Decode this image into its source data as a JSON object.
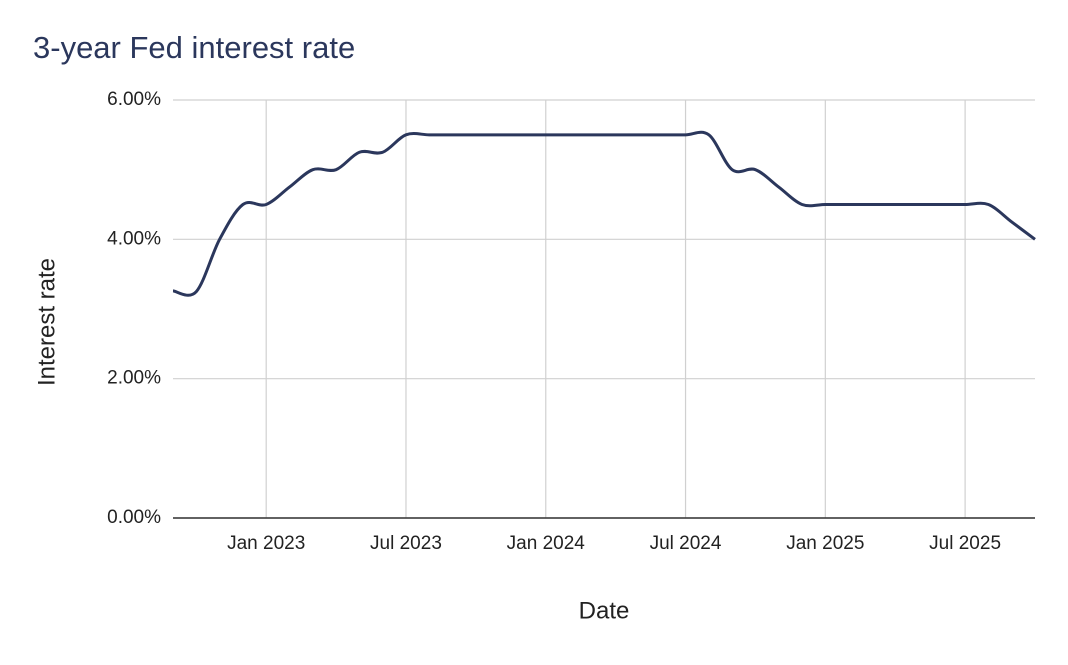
{
  "chart_data": {
    "type": "line",
    "title": "3-year Fed interest rate",
    "x_label": "Date",
    "y_label": "Interest rate",
    "x": [
      "2022-09",
      "2022-10",
      "2022-11",
      "2022-12",
      "2023-01",
      "2023-02",
      "2023-03",
      "2023-04",
      "2023-05",
      "2023-06",
      "2023-07",
      "2023-08",
      "2023-09",
      "2023-10",
      "2023-11",
      "2023-12",
      "2024-01",
      "2024-02",
      "2024-03",
      "2024-04",
      "2024-05",
      "2024-06",
      "2024-07",
      "2024-08",
      "2024-09",
      "2024-10",
      "2024-11",
      "2024-12",
      "2025-01",
      "2025-02",
      "2025-03",
      "2025-04",
      "2025-05",
      "2025-06",
      "2025-07",
      "2025-08",
      "2025-09",
      "2025-10"
    ],
    "series": [
      {
        "name": "Interest rate",
        "color": "#2b375c",
        "values": [
          3.26,
          3.25,
          4.0,
          4.5,
          4.5,
          4.75,
          5.0,
          5.0,
          5.25,
          5.25,
          5.5,
          5.5,
          5.5,
          5.5,
          5.5,
          5.5,
          5.5,
          5.5,
          5.5,
          5.5,
          5.5,
          5.5,
          5.5,
          5.5,
          5.0,
          5.0,
          4.75,
          4.5,
          4.5,
          4.5,
          4.5,
          4.5,
          4.5,
          4.5,
          4.5,
          4.5,
          4.25,
          4.0
        ]
      }
    ],
    "xlim": [
      "2022-09",
      "2025-10"
    ],
    "xticks": [
      {
        "value": "2023-01",
        "label": "Jan 2023"
      },
      {
        "value": "2023-07",
        "label": "Jul 2023"
      },
      {
        "value": "2024-01",
        "label": "Jan 2024"
      },
      {
        "value": "2024-07",
        "label": "Jul 2024"
      },
      {
        "value": "2025-01",
        "label": "Jan 2025"
      },
      {
        "value": "2025-07",
        "label": "Jul 2025"
      }
    ],
    "ylim": [
      0,
      6
    ],
    "yticks": [
      {
        "value": 0,
        "label": "0.00%"
      },
      {
        "value": 2,
        "label": "2.00%"
      },
      {
        "value": 4,
        "label": "4.00%"
      },
      {
        "value": 6,
        "label": "6.00%"
      }
    ],
    "grid": true
  }
}
